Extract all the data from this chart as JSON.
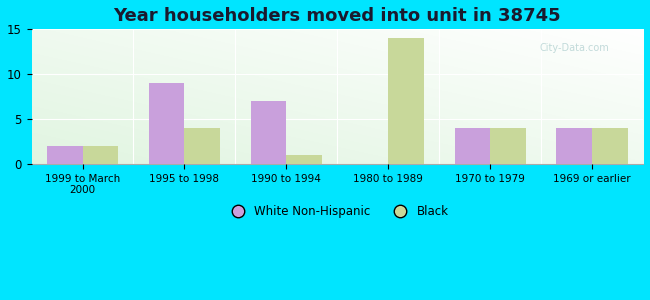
{
  "title": "Year householders moved into unit in 38745",
  "categories": [
    "1999 to March\n2000",
    "1995 to 1998",
    "1990 to 1994",
    "1980 to 1989",
    "1970 to 1979",
    "1969 or earlier"
  ],
  "white_values": [
    2,
    9,
    7,
    0,
    4,
    4
  ],
  "black_values": [
    2,
    4,
    1,
    14,
    4,
    4
  ],
  "white_color": "#c9a0dc",
  "black_color": "#c8d89a",
  "ylim": [
    0,
    15
  ],
  "yticks": [
    0,
    5,
    10,
    15
  ],
  "background_outer": "#00e5ff",
  "bar_width": 0.35,
  "title_fontsize": 13,
  "legend_labels": [
    "White Non-Hispanic",
    "Black"
  ],
  "watermark": "City-Data.com"
}
